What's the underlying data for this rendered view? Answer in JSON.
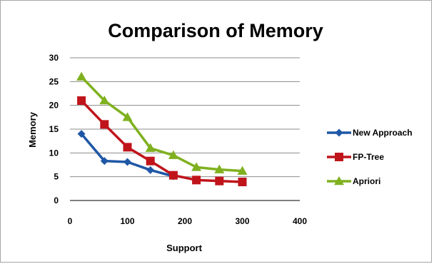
{
  "chart_data": {
    "type": "line",
    "title": "Comparison of Memory",
    "xlabel": "Support",
    "ylabel": "Memory",
    "xlim": [
      0,
      400
    ],
    "ylim": [
      0,
      30
    ],
    "x_ticks": [
      0,
      100,
      200,
      300,
      400
    ],
    "y_ticks": [
      0,
      5,
      10,
      15,
      20,
      25,
      30
    ],
    "grid": "horizontal",
    "legend_position": "right",
    "series": [
      {
        "name": "New Approach",
        "color": "#1f57a6",
        "marker": "diamond",
        "points": [
          [
            20,
            14
          ],
          [
            60,
            8.3
          ],
          [
            100,
            8.1
          ],
          [
            140,
            6.4
          ],
          [
            180,
            5.1
          ]
        ]
      },
      {
        "name": "FP-Tree",
        "color": "#c0141b",
        "marker": "square",
        "points": [
          [
            20,
            21
          ],
          [
            60,
            16
          ],
          [
            100,
            11.2
          ],
          [
            140,
            8.3
          ],
          [
            180,
            5.3
          ],
          [
            220,
            4.3
          ],
          [
            260,
            4.1
          ],
          [
            300,
            3.9
          ]
        ]
      },
      {
        "name": "Apriori",
        "color": "#7fb11f",
        "marker": "triangle",
        "points": [
          [
            20,
            26
          ],
          [
            60,
            21
          ],
          [
            100,
            17.5
          ],
          [
            140,
            11
          ],
          [
            180,
            9.5
          ],
          [
            220,
            7
          ],
          [
            260,
            6.5
          ],
          [
            300,
            6.2
          ]
        ]
      }
    ]
  }
}
